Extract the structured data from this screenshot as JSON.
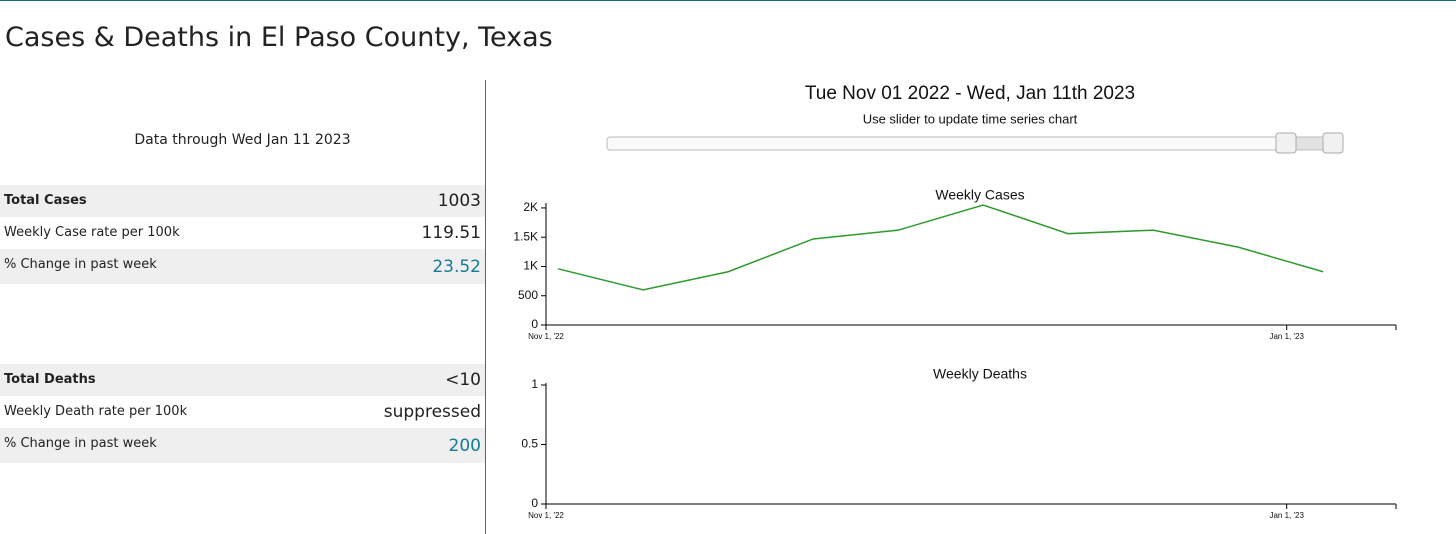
{
  "header": {
    "title": "Cases & Deaths in El Paso County, Texas"
  },
  "summary": {
    "data_through": "Data through Wed Jan 11 2023",
    "cases": [
      {
        "label": "Total Cases",
        "value": 1003
      },
      {
        "label": "Weekly Case rate per 100k",
        "value": 119.51
      },
      {
        "label": "% Change in past week",
        "value": 23.52
      }
    ],
    "deaths": [
      {
        "label": "Total Deaths",
        "value": "<10"
      },
      {
        "label": "Weekly Death rate per 100k",
        "value": "suppressed"
      },
      {
        "label": "% Change in past week",
        "value": 200
      }
    ]
  },
  "range": {
    "title": "Tue Nov 01 2022 - Wed, Jan 11th 2023",
    "hint": "Use slider to update time series chart"
  },
  "chart_data": [
    {
      "type": "line",
      "title": "Weekly Cases",
      "color": "#2e9a2e",
      "x": [
        "2022-11-02",
        "2022-11-09",
        "2022-11-16",
        "2022-11-23",
        "2022-11-30",
        "2022-12-07",
        "2022-12-14",
        "2022-12-21",
        "2022-12-28",
        "2023-01-04"
      ],
      "values": [
        960,
        600,
        910,
        1470,
        1620,
        2050,
        1560,
        1620,
        1330,
        910
      ],
      "xlim": [
        "2022-11-01",
        "2023-01-10"
      ],
      "xticks": [
        {
          "value": "2022-11-01",
          "label": "Nov 1, '22"
        },
        {
          "value": "2023-01-01",
          "label": "Jan 1, '23"
        }
      ],
      "ylim": [
        0,
        2050
      ],
      "yticks": [
        0,
        500,
        {
          "value": 1000,
          "label": "1K"
        },
        {
          "value": 1500,
          "label": "1.5K"
        },
        {
          "value": 2000,
          "label": "2K"
        }
      ]
    },
    {
      "type": "line",
      "title": "Weekly Deaths",
      "xlim": [
        "2022-11-01",
        "2023-01-10"
      ],
      "xticks": [
        {
          "value": "2022-11-01",
          "label": "Nov 1, '22"
        },
        {
          "value": "2023-01-01",
          "label": "Jan 1, '23"
        }
      ],
      "ylim": [
        0,
        1
      ],
      "yticks": [
        0,
        0.5,
        1
      ]
    }
  ]
}
